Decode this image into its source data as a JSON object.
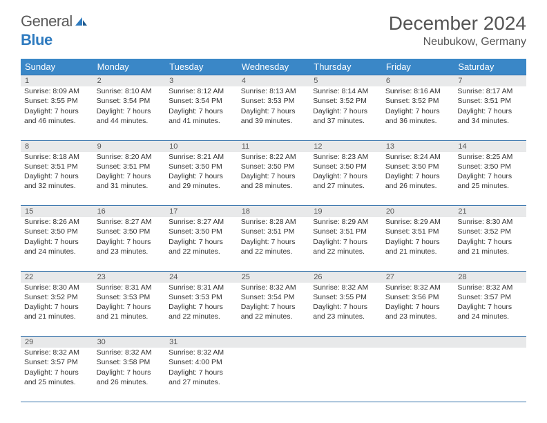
{
  "logo": {
    "general": "General",
    "blue": "Blue"
  },
  "title": "December 2024",
  "location": "Neubukow, Germany",
  "colors": {
    "header_bg": "#3a87c7",
    "header_text": "#ffffff",
    "daynum_bg": "#e8e9ea",
    "border": "#2f6ea8",
    "logo_blue": "#2f7bbf",
    "text": "#333333"
  },
  "day_headers": [
    "Sunday",
    "Monday",
    "Tuesday",
    "Wednesday",
    "Thursday",
    "Friday",
    "Saturday"
  ],
  "weeks": [
    [
      {
        "n": "1",
        "sr": "Sunrise: 8:09 AM",
        "ss": "Sunset: 3:55 PM",
        "dl": "Daylight: 7 hours and 46 minutes."
      },
      {
        "n": "2",
        "sr": "Sunrise: 8:10 AM",
        "ss": "Sunset: 3:54 PM",
        "dl": "Daylight: 7 hours and 44 minutes."
      },
      {
        "n": "3",
        "sr": "Sunrise: 8:12 AM",
        "ss": "Sunset: 3:54 PM",
        "dl": "Daylight: 7 hours and 41 minutes."
      },
      {
        "n": "4",
        "sr": "Sunrise: 8:13 AM",
        "ss": "Sunset: 3:53 PM",
        "dl": "Daylight: 7 hours and 39 minutes."
      },
      {
        "n": "5",
        "sr": "Sunrise: 8:14 AM",
        "ss": "Sunset: 3:52 PM",
        "dl": "Daylight: 7 hours and 37 minutes."
      },
      {
        "n": "6",
        "sr": "Sunrise: 8:16 AM",
        "ss": "Sunset: 3:52 PM",
        "dl": "Daylight: 7 hours and 36 minutes."
      },
      {
        "n": "7",
        "sr": "Sunrise: 8:17 AM",
        "ss": "Sunset: 3:51 PM",
        "dl": "Daylight: 7 hours and 34 minutes."
      }
    ],
    [
      {
        "n": "8",
        "sr": "Sunrise: 8:18 AM",
        "ss": "Sunset: 3:51 PM",
        "dl": "Daylight: 7 hours and 32 minutes."
      },
      {
        "n": "9",
        "sr": "Sunrise: 8:20 AM",
        "ss": "Sunset: 3:51 PM",
        "dl": "Daylight: 7 hours and 31 minutes."
      },
      {
        "n": "10",
        "sr": "Sunrise: 8:21 AM",
        "ss": "Sunset: 3:50 PM",
        "dl": "Daylight: 7 hours and 29 minutes."
      },
      {
        "n": "11",
        "sr": "Sunrise: 8:22 AM",
        "ss": "Sunset: 3:50 PM",
        "dl": "Daylight: 7 hours and 28 minutes."
      },
      {
        "n": "12",
        "sr": "Sunrise: 8:23 AM",
        "ss": "Sunset: 3:50 PM",
        "dl": "Daylight: 7 hours and 27 minutes."
      },
      {
        "n": "13",
        "sr": "Sunrise: 8:24 AM",
        "ss": "Sunset: 3:50 PM",
        "dl": "Daylight: 7 hours and 26 minutes."
      },
      {
        "n": "14",
        "sr": "Sunrise: 8:25 AM",
        "ss": "Sunset: 3:50 PM",
        "dl": "Daylight: 7 hours and 25 minutes."
      }
    ],
    [
      {
        "n": "15",
        "sr": "Sunrise: 8:26 AM",
        "ss": "Sunset: 3:50 PM",
        "dl": "Daylight: 7 hours and 24 minutes."
      },
      {
        "n": "16",
        "sr": "Sunrise: 8:27 AM",
        "ss": "Sunset: 3:50 PM",
        "dl": "Daylight: 7 hours and 23 minutes."
      },
      {
        "n": "17",
        "sr": "Sunrise: 8:27 AM",
        "ss": "Sunset: 3:50 PM",
        "dl": "Daylight: 7 hours and 22 minutes."
      },
      {
        "n": "18",
        "sr": "Sunrise: 8:28 AM",
        "ss": "Sunset: 3:51 PM",
        "dl": "Daylight: 7 hours and 22 minutes."
      },
      {
        "n": "19",
        "sr": "Sunrise: 8:29 AM",
        "ss": "Sunset: 3:51 PM",
        "dl": "Daylight: 7 hours and 22 minutes."
      },
      {
        "n": "20",
        "sr": "Sunrise: 8:29 AM",
        "ss": "Sunset: 3:51 PM",
        "dl": "Daylight: 7 hours and 21 minutes."
      },
      {
        "n": "21",
        "sr": "Sunrise: 8:30 AM",
        "ss": "Sunset: 3:52 PM",
        "dl": "Daylight: 7 hours and 21 minutes."
      }
    ],
    [
      {
        "n": "22",
        "sr": "Sunrise: 8:30 AM",
        "ss": "Sunset: 3:52 PM",
        "dl": "Daylight: 7 hours and 21 minutes."
      },
      {
        "n": "23",
        "sr": "Sunrise: 8:31 AM",
        "ss": "Sunset: 3:53 PM",
        "dl": "Daylight: 7 hours and 21 minutes."
      },
      {
        "n": "24",
        "sr": "Sunrise: 8:31 AM",
        "ss": "Sunset: 3:53 PM",
        "dl": "Daylight: 7 hours and 22 minutes."
      },
      {
        "n": "25",
        "sr": "Sunrise: 8:32 AM",
        "ss": "Sunset: 3:54 PM",
        "dl": "Daylight: 7 hours and 22 minutes."
      },
      {
        "n": "26",
        "sr": "Sunrise: 8:32 AM",
        "ss": "Sunset: 3:55 PM",
        "dl": "Daylight: 7 hours and 23 minutes."
      },
      {
        "n": "27",
        "sr": "Sunrise: 8:32 AM",
        "ss": "Sunset: 3:56 PM",
        "dl": "Daylight: 7 hours and 23 minutes."
      },
      {
        "n": "28",
        "sr": "Sunrise: 8:32 AM",
        "ss": "Sunset: 3:57 PM",
        "dl": "Daylight: 7 hours and 24 minutes."
      }
    ],
    [
      {
        "n": "29",
        "sr": "Sunrise: 8:32 AM",
        "ss": "Sunset: 3:57 PM",
        "dl": "Daylight: 7 hours and 25 minutes."
      },
      {
        "n": "30",
        "sr": "Sunrise: 8:32 AM",
        "ss": "Sunset: 3:58 PM",
        "dl": "Daylight: 7 hours and 26 minutes."
      },
      {
        "n": "31",
        "sr": "Sunrise: 8:32 AM",
        "ss": "Sunset: 4:00 PM",
        "dl": "Daylight: 7 hours and 27 minutes."
      },
      null,
      null,
      null,
      null
    ]
  ]
}
